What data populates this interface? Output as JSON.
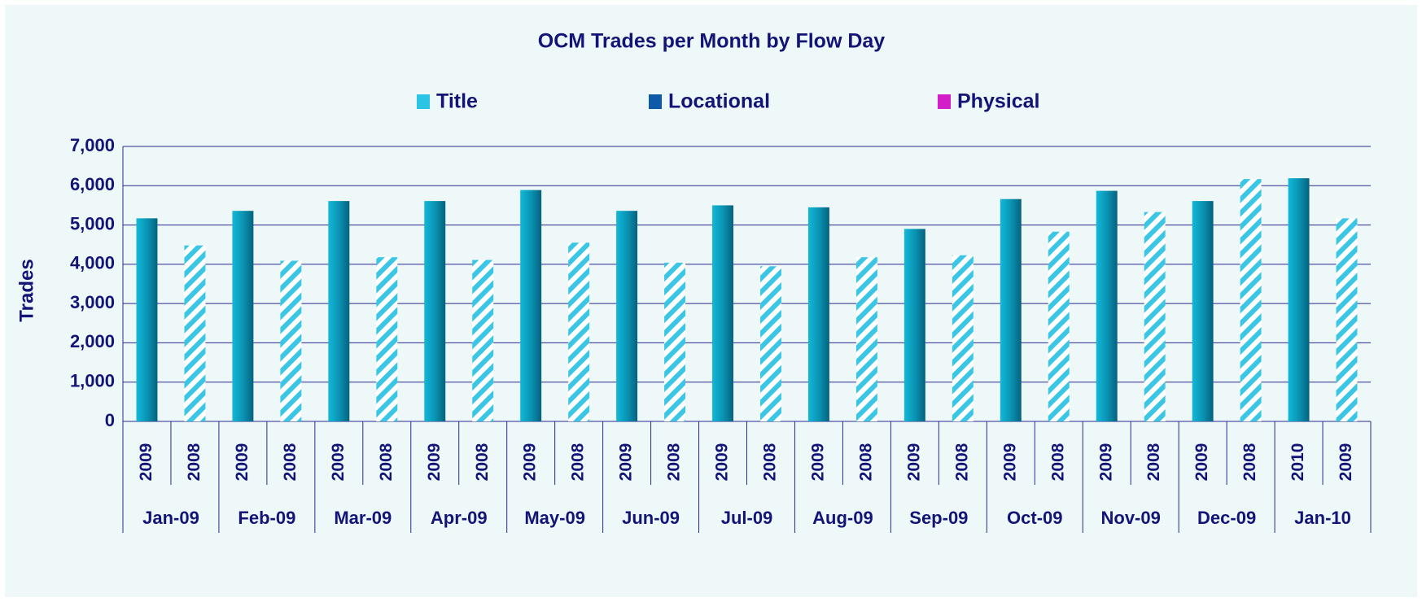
{
  "chart_data": {
    "type": "bar",
    "title": "OCM Trades per Month by Flow Day",
    "y_label": "Trades",
    "legend": [
      {
        "name": "Title",
        "color": "#2cc4e4"
      },
      {
        "name": "Locational",
        "color": "#0c5aa8"
      },
      {
        "name": "Physical",
        "color": "#d21ec8"
      }
    ],
    "categories": [
      "2009",
      "2008",
      "2009",
      "2008",
      "2009",
      "2008",
      "2009",
      "2008",
      "2009",
      "2008",
      "2009",
      "2008",
      "2009",
      "2008",
      "2009",
      "2008",
      "2009",
      "2008",
      "2009",
      "2008",
      "2009",
      "2008",
      "2009",
      "2008",
      "2010",
      "2009"
    ],
    "groups": [
      "Jan-09",
      "Feb-09",
      "Mar-09",
      "Apr-09",
      "May-09",
      "Jun-09",
      "Jul-09",
      "Aug-09",
      "Sep-09",
      "Oct-09",
      "Nov-09",
      "Dec-09",
      "Jan-10"
    ],
    "values": [
      5170,
      4480,
      5360,
      4090,
      5610,
      4180,
      5610,
      4110,
      5890,
      4550,
      5360,
      4040,
      5500,
      3950,
      5450,
      4180,
      4900,
      4230,
      5660,
      4830,
      5870,
      5330,
      5610,
      6170,
      6190,
      5170
    ],
    "hatched": [
      false,
      true,
      false,
      true,
      false,
      true,
      false,
      true,
      false,
      true,
      false,
      true,
      false,
      true,
      false,
      true,
      false,
      true,
      false,
      true,
      false,
      true,
      false,
      true,
      false,
      true
    ],
    "ylim": [
      0,
      7000
    ],
    "yticks": [
      0,
      {
        "value": 1000,
        "label": "1,000"
      },
      {
        "value": 2000,
        "label": "2,000"
      },
      {
        "value": 3000,
        "label": "3,000"
      },
      {
        "value": 4000,
        "label": "4,000"
      },
      {
        "value": 5000,
        "label": "5,000"
      },
      {
        "value": 6000,
        "label": "6,000"
      },
      {
        "value": 7000,
        "label": "7,000"
      }
    ],
    "grid": true
  }
}
